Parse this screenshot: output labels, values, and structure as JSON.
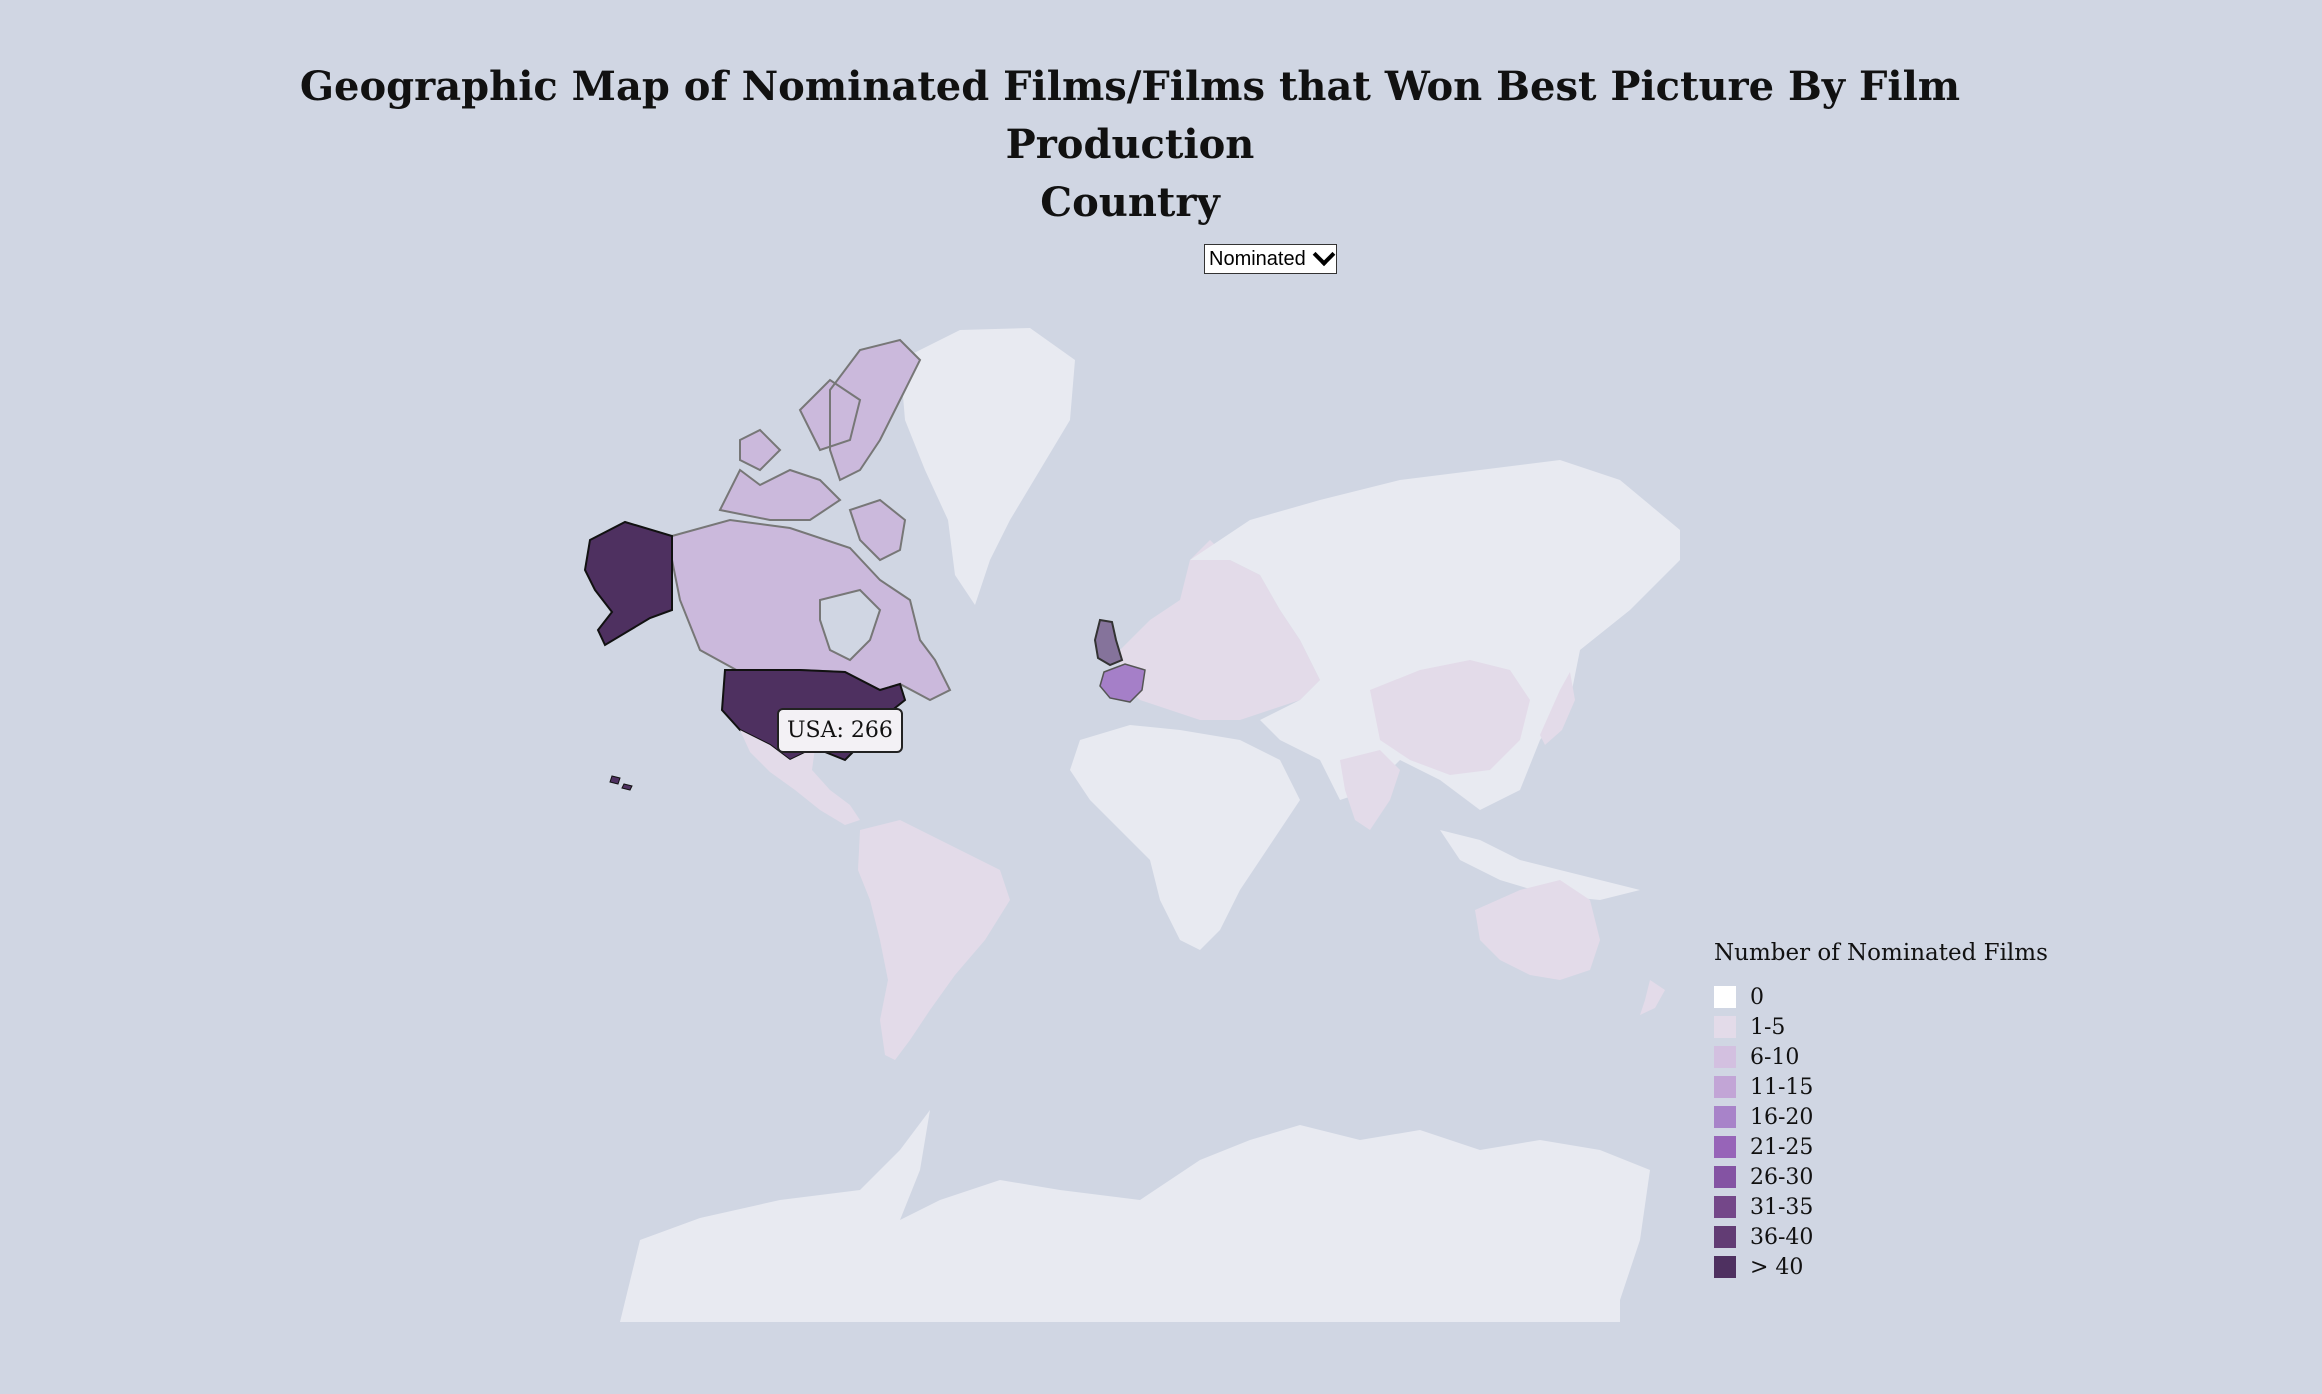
{
  "page": {
    "title_line1": "Geographic Map of Nominated Films/Films that Won Best Picture By Film Production",
    "title_line2": "Country"
  },
  "selector": {
    "selected": "Nominated"
  },
  "tooltip": {
    "text": "USA: 266"
  },
  "legend": {
    "title": "Number of Nominated Films",
    "items": [
      {
        "label": "0",
        "color": "#ffffff"
      },
      {
        "label": "1-5",
        "color": "#e3dbe9"
      },
      {
        "label": "6-10",
        "color": "#d3c0e0"
      },
      {
        "label": "11-15",
        "color": "#c2a5d6"
      },
      {
        "label": "16-20",
        "color": "#a883c9"
      },
      {
        "label": "21-25",
        "color": "#9764b8"
      },
      {
        "label": "26-30",
        "color": "#8453a3"
      },
      {
        "label": "31-35",
        "color": "#744789"
      },
      {
        "label": "36-40",
        "color": "#623c74"
      },
      {
        "label": "> 40",
        "color": "#4e3060"
      }
    ]
  },
  "colors": {
    "background": "#d0d6e3",
    "ocean": "#d0d6e3",
    "land_zero": "#e8eaf1",
    "usa": "#4e3060",
    "canada": "#cbb9dc",
    "uk": "#85739b",
    "france": "#a57fc8",
    "light": "#e3dbe9"
  }
}
